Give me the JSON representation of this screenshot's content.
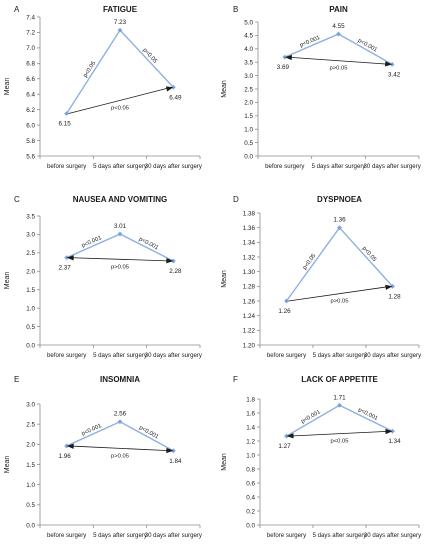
{
  "chart_data": [
    {
      "type": "line",
      "panel_letter": "A",
      "title": "FATIGUE",
      "xlabel": "",
      "ylabel": "Mean",
      "categories": [
        "before surgery",
        "5 days after surgery",
        "30 days after surgery"
      ],
      "values": [
        6.15,
        7.23,
        6.49
      ],
      "ylim": [
        5.6,
        7.4
      ],
      "ystep": 0.2,
      "yticks": [
        "5.6",
        "5.8",
        "6.0",
        "6.2",
        "6.4",
        "6.6",
        "6.8",
        "7.0",
        "7.2",
        "7.4"
      ],
      "data_labels": [
        "6.15",
        "7.23",
        "6.49"
      ],
      "annotations": {
        "left": "p<0.05",
        "right": "p<0.05",
        "bottom": "p<0.05"
      },
      "arrow_direction": "forward"
    },
    {
      "type": "line",
      "panel_letter": "B",
      "title": "PAIN",
      "xlabel": "",
      "ylabel": "Mean",
      "categories": [
        "before surgery",
        "5 days after surgery",
        "30 days after surgery"
      ],
      "values": [
        3.69,
        4.55,
        3.42
      ],
      "ylim": [
        0.0,
        5.0
      ],
      "ystep": 0.5,
      "yticks": [
        "0.0",
        "0.5",
        "1.0",
        "1.5",
        "2.0",
        "2.5",
        "3.0",
        "3.5",
        "4.0",
        "4.5",
        "5.0"
      ],
      "data_labels": [
        "3.69",
        "4.55",
        "3.42"
      ],
      "annotations": {
        "left": "p<0.001",
        "right": "p<0.001",
        "bottom": "p>0.05"
      },
      "arrow_direction": "both"
    },
    {
      "type": "line",
      "panel_letter": "C",
      "title": "NAUSEA AND VOMITING",
      "xlabel": "",
      "ylabel": "Mean",
      "categories": [
        "before surgery",
        "5 days after surgery",
        "30 days after surgery"
      ],
      "values": [
        2.37,
        3.01,
        2.28
      ],
      "ylim": [
        0.0,
        3.5
      ],
      "ystep": 0.5,
      "yticks": [
        "0.0",
        "0.5",
        "1.0",
        "1.5",
        "2.0",
        "2.5",
        "3.0",
        "3.5"
      ],
      "data_labels": [
        "2.37",
        "3.01",
        "2.28"
      ],
      "annotations": {
        "left": "p<0.001",
        "right": "p<0.001",
        "bottom": "p>0.05"
      },
      "arrow_direction": "both"
    },
    {
      "type": "line",
      "panel_letter": "D",
      "title": "DYSPNOEA",
      "xlabel": "",
      "ylabel": "Mean",
      "categories": [
        "before surgery",
        "5 days after surgery",
        "30 days after surgery"
      ],
      "values": [
        1.26,
        1.36,
        1.28
      ],
      "ylim": [
        1.2,
        1.38
      ],
      "ystep": 0.02,
      "yticks": [
        "1.20",
        "1.22",
        "1.24",
        "1.26",
        "1.28",
        "1.30",
        "1.32",
        "1.34",
        "1.36",
        "1.38"
      ],
      "data_labels": [
        "1.26",
        "1.36",
        "1.28"
      ],
      "annotations": {
        "left": "p<0.05",
        "right": "p<0.05",
        "bottom": "p>0.05"
      },
      "arrow_direction": "forward"
    },
    {
      "type": "line",
      "panel_letter": "E",
      "title": "INSOMNIA",
      "xlabel": "",
      "ylabel": "Mean",
      "categories": [
        "before surgery",
        "5 days after surgery",
        "30 days after surgery"
      ],
      "values": [
        1.96,
        2.56,
        1.84
      ],
      "ylim": [
        0.0,
        3.0
      ],
      "ystep": 0.5,
      "yticks": [
        "0.0",
        "0.5",
        "1.0",
        "1.5",
        "2.0",
        "2.5",
        "3.0"
      ],
      "data_labels": [
        "1.96",
        "2.56",
        "1.84"
      ],
      "annotations": {
        "left": "p<0.001",
        "right": "p<0.001",
        "bottom": "p>0.05"
      },
      "arrow_direction": "both"
    },
    {
      "type": "line",
      "panel_letter": "F",
      "title": "LACK OF APPETITE",
      "xlabel": "",
      "ylabel": "Mean",
      "categories": [
        "before surgery",
        "5 days after surgery",
        "30 days after surgery"
      ],
      "values": [
        1.27,
        1.71,
        1.34
      ],
      "ylim": [
        0.0,
        1.8
      ],
      "ystep": 0.2,
      "yticks": [
        "0.0",
        "0.2",
        "0.4",
        "0.6",
        "0.8",
        "1.0",
        "1.2",
        "1.4",
        "1.6",
        "1.8"
      ],
      "data_labels": [
        "1.27",
        "1.71",
        "1.34"
      ],
      "annotations": {
        "left": "p<0.001",
        "right": "p<0.001",
        "bottom": "p<0.05"
      },
      "arrow_direction": "both"
    }
  ],
  "colors": {
    "line": "#8fb1e0",
    "marker": "#7aa3dc",
    "arrow": "#1a1a1a",
    "axis": "#8c8c8c",
    "text": "#1a1a1a"
  }
}
